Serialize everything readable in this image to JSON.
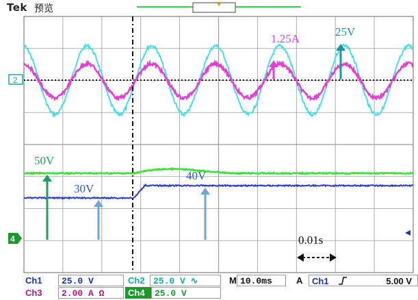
{
  "header": {
    "brand": "Tek",
    "mode": "预览"
  },
  "channels": {
    "ch1": {
      "name": "Ch1",
      "scale": "25.0 V",
      "color": "#1b2fb5"
    },
    "ch2": {
      "name": "Ch2",
      "scale": "25.0 V",
      "coupling": "∿",
      "color": "#14a8a8"
    },
    "ch3": {
      "name": "Ch3",
      "scale": "2.00 A Ω",
      "color": "#b5148a"
    },
    "ch4": {
      "name": "Ch4",
      "scale": "25.0 V",
      "color": "#1a9a2a"
    }
  },
  "markers": {
    "ref": "2",
    "ch4": "4"
  },
  "timebase": {
    "label": "M",
    "value": "10.0ms"
  },
  "trigger": {
    "mode": "A",
    "source": "Ch1",
    "slope_icon": "rising-edge",
    "level": "5.00 V"
  },
  "annotations": {
    "current": "1.25A",
    "voltage_peak": "25V",
    "voltage_green": "50V",
    "voltage_blue_before": "30V",
    "voltage_blue_after": "40V",
    "time_span": "0.01s"
  },
  "colors": {
    "grid": "#9a9a9a",
    "cyan": "#44e0e8",
    "magenta": "#e43fd2",
    "green": "#38e438",
    "blue": "#2a3ad8",
    "arrow_green": "#1f9f5a",
    "arrow_blue": "#6aa6d6",
    "arrow_teal": "#1a95a8"
  }
}
